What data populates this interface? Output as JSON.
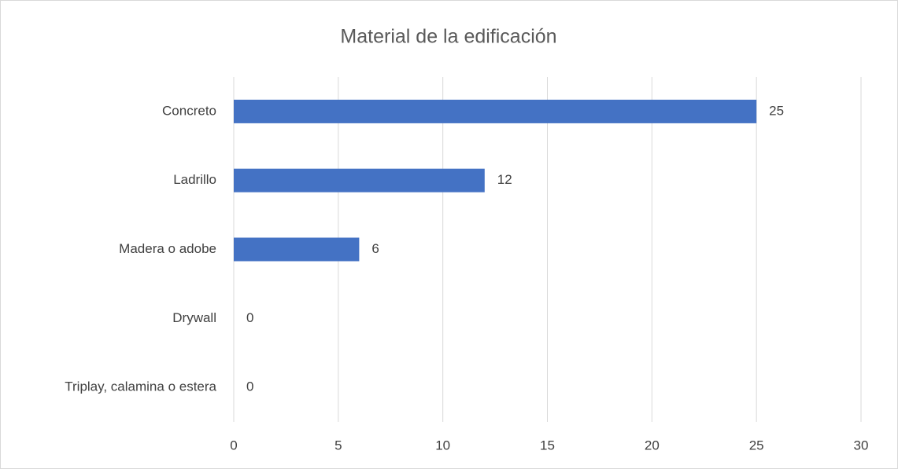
{
  "chart_data": {
    "type": "barh",
    "title": "Material de la edificación",
    "categories": [
      "Concreto",
      "Ladrillo",
      "Madera o adobe",
      "Drywall",
      "Triplay, calamina o estera"
    ],
    "values": [
      25,
      12,
      6,
      0,
      0
    ],
    "color": "#4472c4",
    "xlim": [
      0,
      30
    ],
    "xticks": [
      0,
      5,
      10,
      15,
      20,
      25,
      30
    ],
    "grid": true,
    "data_labels": true
  }
}
